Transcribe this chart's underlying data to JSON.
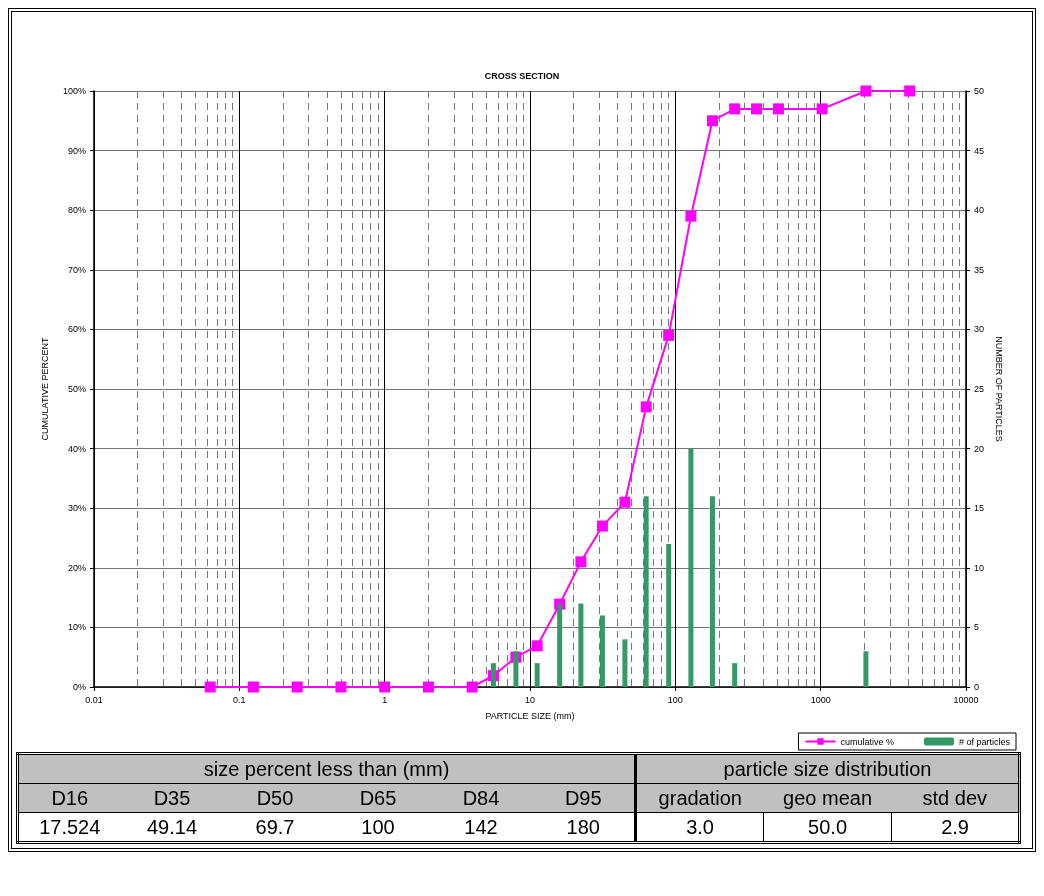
{
  "chart_data": [
    {
      "type": "line",
      "title": "CROSS SECTION",
      "xlabel": "PARTICLE SIZE (mm)",
      "ylabel": "CUMULATIVE PERCENT",
      "y2label": "NUMBER OF PARTICLES",
      "x": [
        0.063,
        0.125,
        0.25,
        0.5,
        1,
        2,
        4,
        5.6,
        8,
        11.2,
        16,
        22.4,
        31.5,
        45,
        63,
        90,
        128,
        180,
        256,
        362,
        512,
        1024,
        2048,
        4096
      ],
      "series": [
        {
          "name": "cumulative %",
          "type": "line",
          "color": "#ff00ff",
          "values": [
            0,
            0,
            0,
            0,
            0,
            0,
            0,
            1.9,
            5,
            6.9,
            13.9,
            21,
            27,
            31,
            47,
            59,
            79,
            95,
            97,
            97,
            97,
            97,
            100,
            100
          ]
        },
        {
          "name": "# of particles",
          "type": "bar",
          "axis": "y2",
          "color": "#339966",
          "values": [
            0,
            0,
            0,
            0,
            0,
            0,
            0,
            2,
            3,
            2,
            7,
            7,
            6,
            4,
            16,
            12,
            20,
            16,
            2,
            0,
            0,
            0,
            3,
            0
          ]
        }
      ],
      "log": "x",
      "xlim": [
        0.01,
        10000
      ],
      "xticks": [
        0.01,
        0.1,
        1,
        10,
        100,
        1000,
        10000
      ],
      "ylim": [
        0,
        100
      ],
      "yticks": [
        {
          "value": 0,
          "label": "0%"
        },
        {
          "value": 10,
          "label": "10%"
        },
        {
          "value": 20,
          "label": "20%"
        },
        {
          "value": 30,
          "label": "30%"
        },
        {
          "value": 40,
          "label": "40%"
        },
        {
          "value": 50,
          "label": "50%"
        },
        {
          "value": 60,
          "label": "60%"
        },
        {
          "value": 70,
          "label": "70%"
        },
        {
          "value": 80,
          "label": "80%"
        },
        {
          "value": 90,
          "label": "90%"
        },
        {
          "value": 100,
          "label": "100%"
        }
      ],
      "y2lim": [
        0,
        50
      ],
      "y2ticks": [
        0,
        5,
        10,
        15,
        20,
        25,
        30,
        35,
        40,
        45,
        50
      ],
      "grid": true,
      "legend": "bottom right",
      "marker": "square"
    },
    {
      "type": "other",
      "annotations": [
        "size percent less than (mm)",
        "particle size distribution"
      ],
      "categories": [
        "D16",
        "D35",
        "D50",
        "D65",
        "D84",
        "D95",
        "gradation",
        "geo mean",
        "std dev"
      ],
      "value_labels": [
        "17.524",
        "49.14",
        "69.7",
        "100",
        "142",
        "180",
        "3.0",
        "50.0",
        "2.9"
      ]
    }
  ]
}
